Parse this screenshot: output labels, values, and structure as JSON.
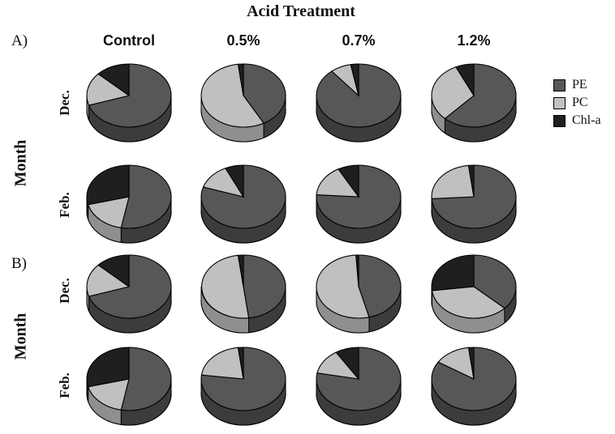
{
  "chart_data": {
    "type": "pie",
    "title": "Acid Treatment",
    "panels": [
      "A)",
      "B)"
    ],
    "row_axis_label": "Month",
    "columns": [
      "Control",
      "0.5%",
      "0.7%",
      "1.2%"
    ],
    "rows": [
      "Dec.",
      "Feb."
    ],
    "series": [
      {
        "name": "PE",
        "color": "#575757"
      },
      {
        "name": "PC",
        "color": "#c0c0c0"
      },
      {
        "name": "Chl-a",
        "color": "#1f1f1f"
      }
    ],
    "values": {
      "A": {
        "Dec.": {
          "Control": [
            0.7,
            0.17,
            0.13
          ],
          "0.5%": [
            0.42,
            0.56,
            0.02
          ],
          "0.7%": [
            0.89,
            0.08,
            0.03
          ],
          "1.2%": [
            0.62,
            0.31,
            0.07
          ]
        },
        "Feb.": {
          "Control": [
            0.53,
            0.18,
            0.29
          ],
          "0.5%": [
            0.8,
            0.13,
            0.07
          ],
          "0.7%": [
            0.76,
            0.16,
            0.08
          ],
          "1.2%": [
            0.74,
            0.24,
            0.02
          ]
        }
      },
      "B": {
        "Dec.": {
          "Control": [
            0.7,
            0.17,
            0.13
          ],
          "0.5%": [
            0.48,
            0.5,
            0.02
          ],
          "0.7%": [
            0.46,
            0.53,
            0.01
          ],
          "1.2%": [
            0.37,
            0.36,
            0.27
          ]
        },
        "Feb.": {
          "Control": [
            0.53,
            0.18,
            0.29
          ],
          "0.5%": [
            0.77,
            0.21,
            0.02
          ],
          "0.7%": [
            0.78,
            0.13,
            0.09
          ],
          "1.2%": [
            0.84,
            0.14,
            0.02
          ]
        }
      }
    }
  }
}
